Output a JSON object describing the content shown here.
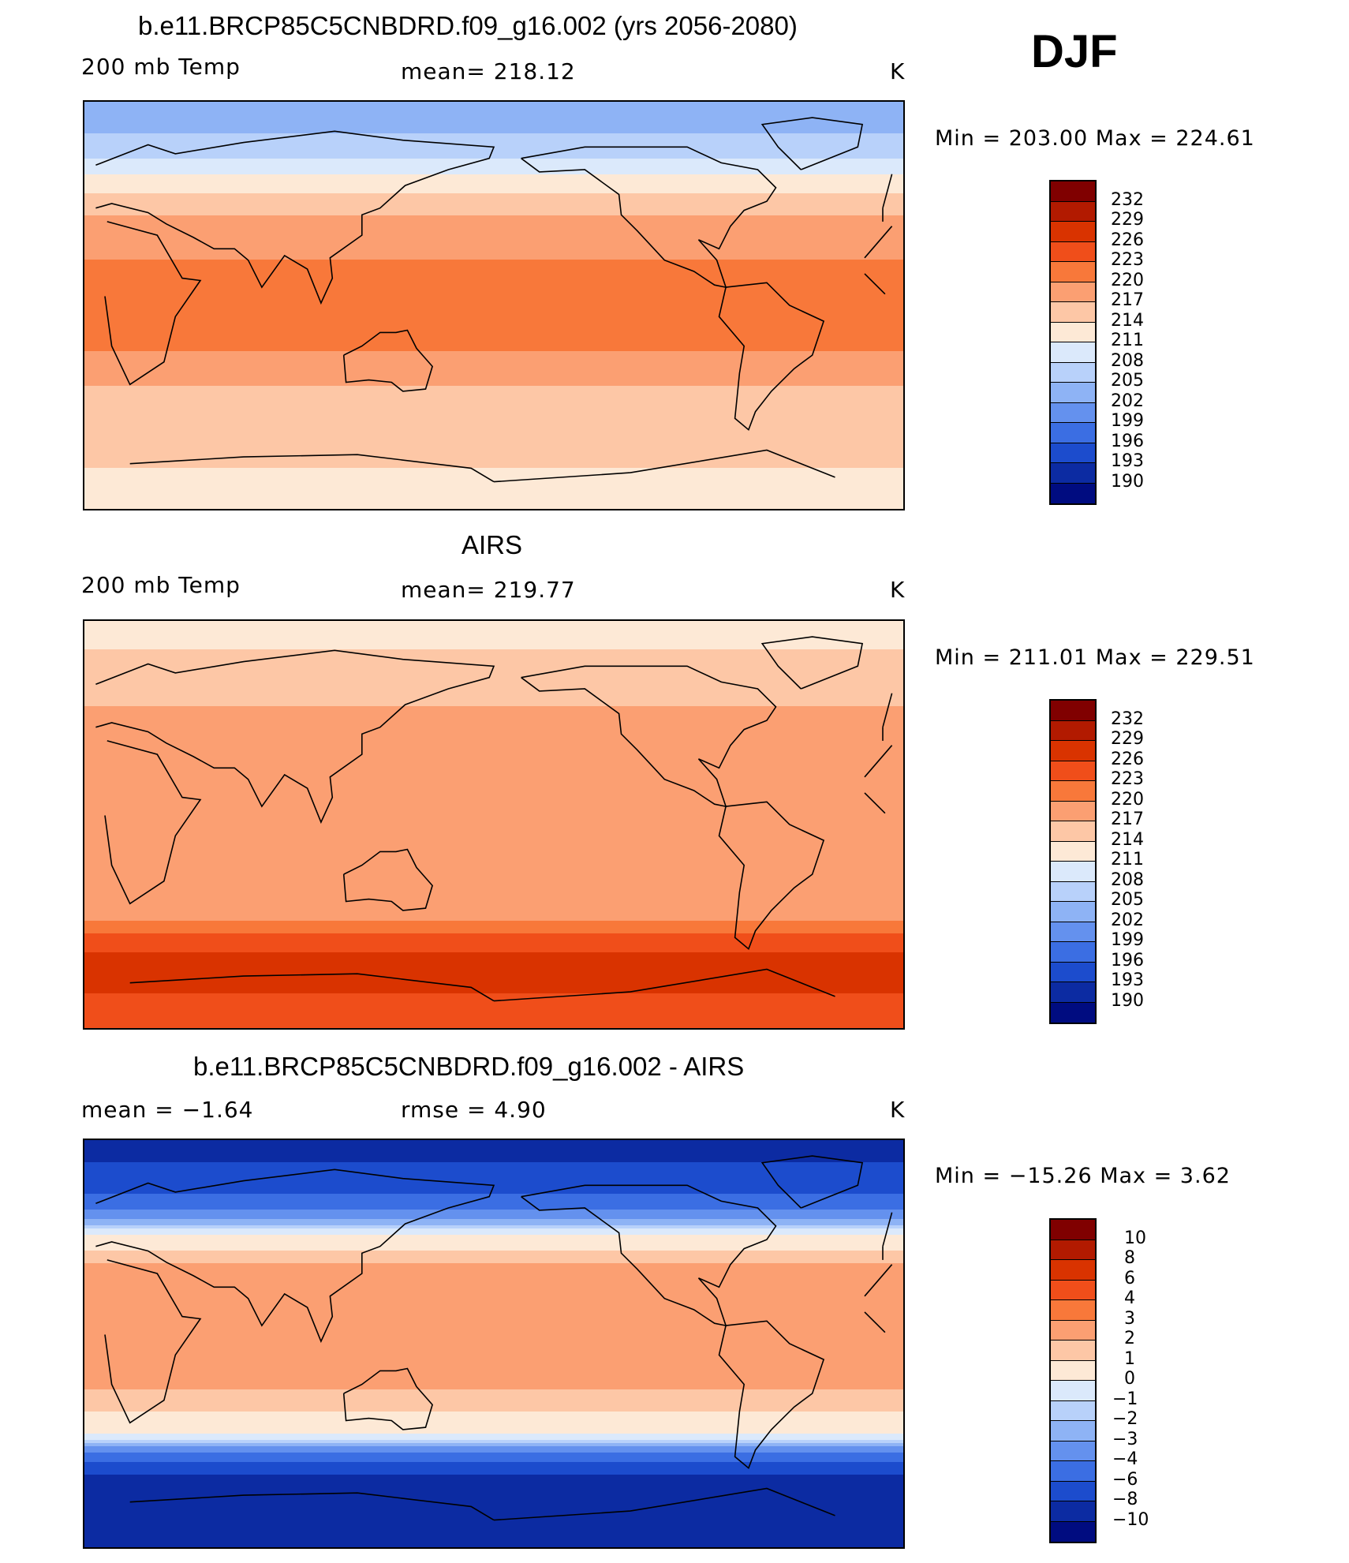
{
  "season": "DJF",
  "chart_data": [
    {
      "type": "heatmap",
      "title": "b.e11.BRCP85C5CNBDRD.f09_g16.002 (yrs 2056-2080)",
      "left_label": "200 mb Temp",
      "center_label": "mean=  218.12",
      "units": "K",
      "minmax": "Min  =  203.00  Max  =  224.61",
      "colorbar_ticks": [
        "232",
        "229",
        "226",
        "223",
        "220",
        "217",
        "214",
        "211",
        "208",
        "205",
        "202",
        "199",
        "196",
        "193",
        "190"
      ],
      "bands": [
        {
          "lat": 90,
          "level": 203
        },
        {
          "lat": 70,
          "level": 206
        },
        {
          "lat": 55,
          "level": 212
        },
        {
          "lat": 45,
          "level": 216
        },
        {
          "lat": 30,
          "level": 219
        },
        {
          "lat": 10,
          "level": 221
        },
        {
          "lat": -5,
          "level": 222
        },
        {
          "lat": -20,
          "level": 220
        },
        {
          "lat": -35,
          "level": 217
        },
        {
          "lat": -55,
          "level": 215
        },
        {
          "lat": -90,
          "level": 213
        }
      ]
    },
    {
      "type": "heatmap",
      "title": "AIRS",
      "left_label": "200 mb Temp",
      "center_label": "mean=  219.77",
      "units": "K",
      "minmax": "Min  =  211.01  Max  =  229.51",
      "colorbar_ticks": [
        "232",
        "229",
        "226",
        "223",
        "220",
        "217",
        "214",
        "211",
        "208",
        "205",
        "202",
        "199",
        "196",
        "193",
        "190"
      ],
      "bands": [
        {
          "lat": 90,
          "level": 213
        },
        {
          "lat": 65,
          "level": 215
        },
        {
          "lat": 45,
          "level": 218
        },
        {
          "lat": 25,
          "level": 219
        },
        {
          "lat": 0,
          "level": 219
        },
        {
          "lat": -25,
          "level": 218
        },
        {
          "lat": -40,
          "level": 219
        },
        {
          "lat": -50,
          "level": 224
        },
        {
          "lat": -60,
          "level": 227
        },
        {
          "lat": -75,
          "level": 226
        },
        {
          "lat": -90,
          "level": 225
        }
      ]
    },
    {
      "type": "heatmap",
      "title": "b.e11.BRCP85C5CNBDRD.f09_g16.002 - AIRS",
      "left_label": "mean =    −1.64",
      "center_label": "rmse =     4.90",
      "units": "K",
      "minmax": "Min  =  −15.26  Max  =     3.62",
      "colorbar_ticks": [
        "10",
        "8",
        "6",
        "4",
        "3",
        "2",
        "1",
        "0",
        "−1",
        "−2",
        "−3",
        "−4",
        "−6",
        "−8",
        "−10"
      ],
      "bands": [
        {
          "lat": 90,
          "level": -9
        },
        {
          "lat": 70,
          "level": -7
        },
        {
          "lat": 55,
          "level": -3
        },
        {
          "lat": 48,
          "level": 0
        },
        {
          "lat": 35,
          "level": 2
        },
        {
          "lat": 10,
          "level": 2.5
        },
        {
          "lat": -20,
          "level": 2
        },
        {
          "lat": -40,
          "level": 0
        },
        {
          "lat": -48,
          "level": -4
        },
        {
          "lat": -60,
          "level": -9
        },
        {
          "lat": -90,
          "level": -10
        }
      ]
    }
  ],
  "colors": {
    "scale": [
      "#800000",
      "#b21a00",
      "#d93300",
      "#f04e1a",
      "#f8783a",
      "#fb9f72",
      "#fdc7a6",
      "#fde9d6",
      "#dbe9fb",
      "#b8d1fa",
      "#8eb3f5",
      "#6491ee",
      "#3b6ee3",
      "#1c4ccd",
      "#0c2ba2",
      "#000c80"
    ]
  }
}
